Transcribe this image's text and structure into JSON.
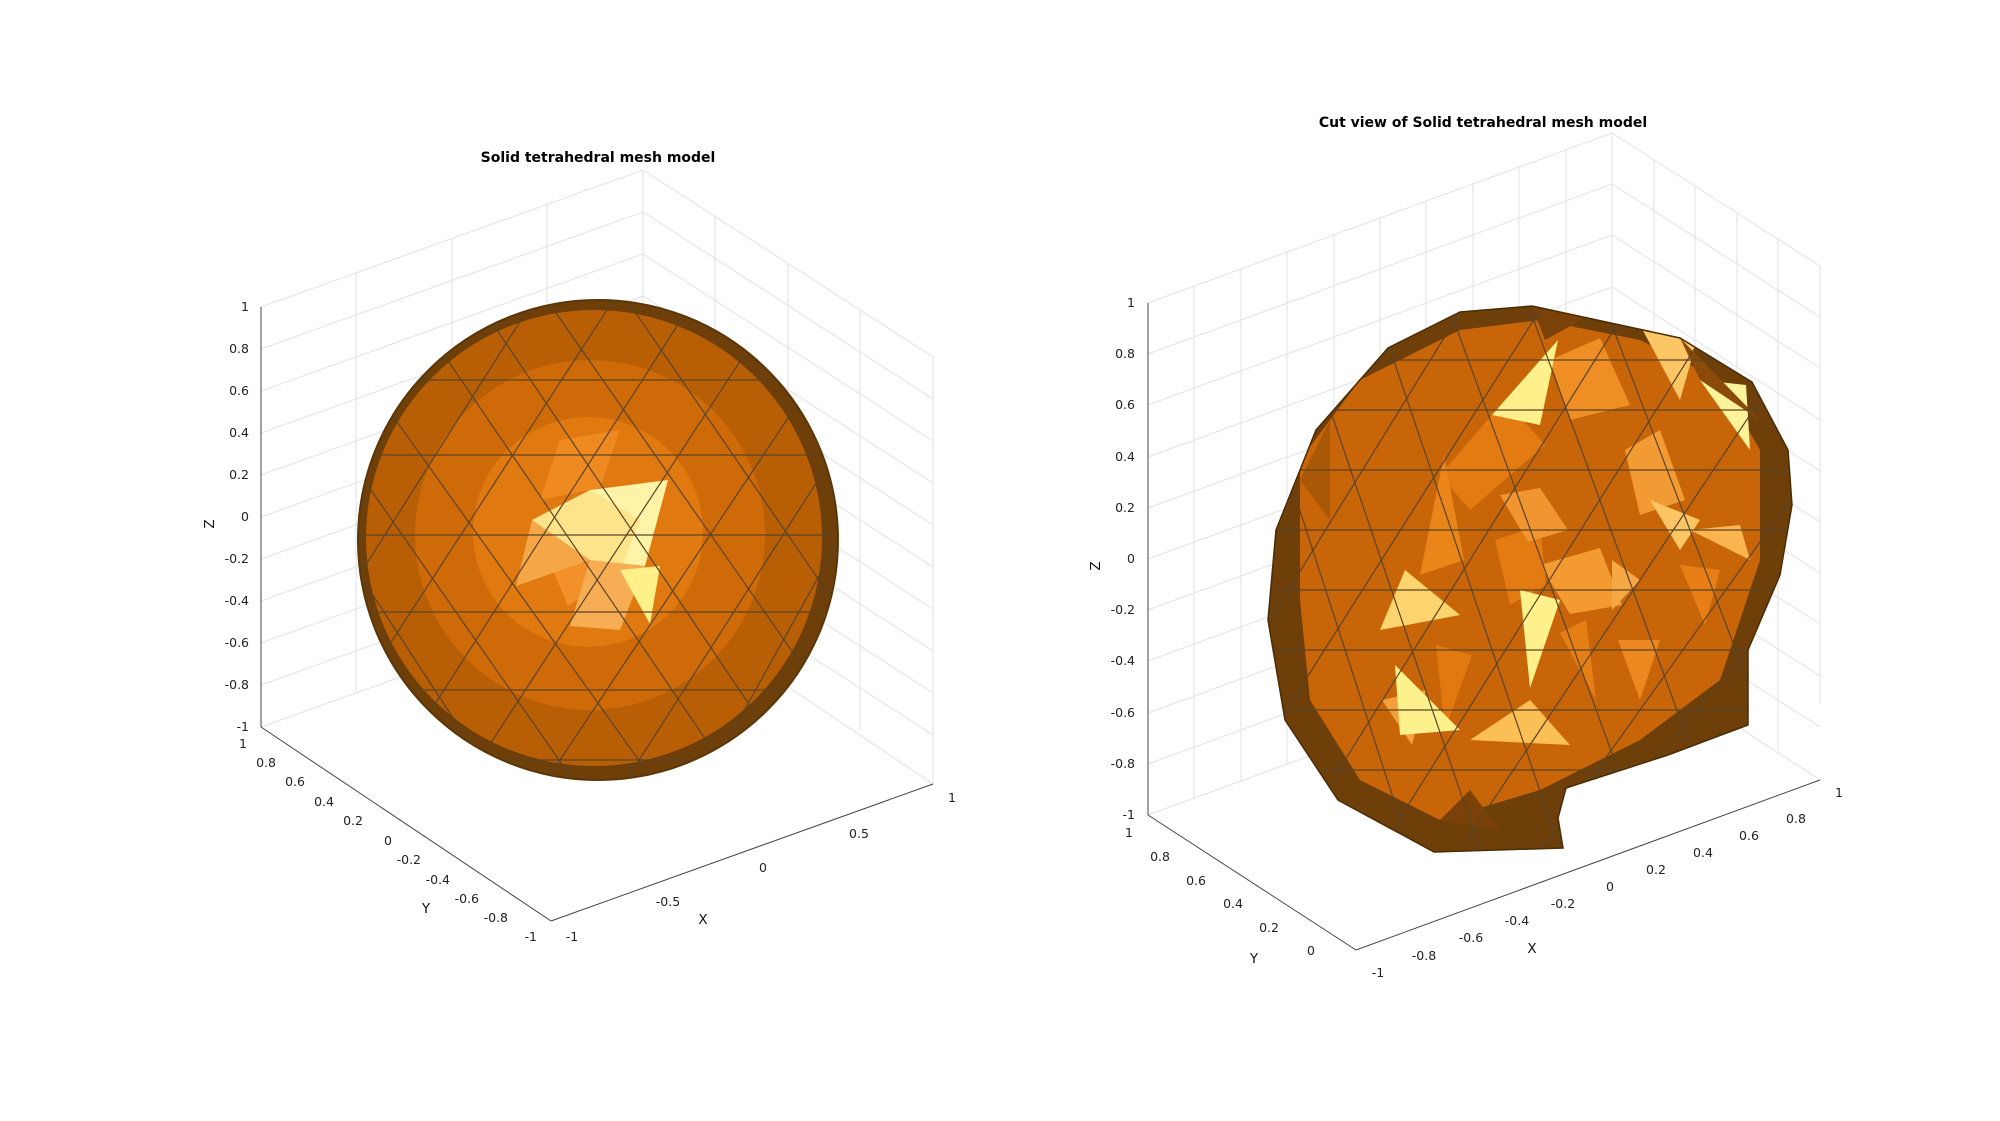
{
  "figure": {
    "panels": [
      {
        "id": "left",
        "title": "Solid tetrahedral mesh model",
        "xlabel": "X",
        "ylabel": "Y",
        "zlabel": "Z",
        "xticks": [
          "-1",
          "-0.5",
          "0",
          "0.5",
          "1"
        ],
        "yticks": [
          "1",
          "0.8",
          "0.6",
          "0.4",
          "0.2",
          "0",
          "-0.2",
          "-0.4",
          "-0.6",
          "-0.8",
          "-1"
        ],
        "zticks": [
          "1",
          "0.8",
          "0.6",
          "0.4",
          "0.2",
          "0",
          "-0.2",
          "-0.4",
          "-0.6",
          "-0.8",
          "-1"
        ],
        "xlim": [
          -1,
          1
        ],
        "ylim": [
          -1,
          1
        ],
        "zlim": [
          -1,
          1
        ]
      },
      {
        "id": "right",
        "title": "Cut view of Solid tetrahedral mesh model",
        "xlabel": "X",
        "ylabel": "Y",
        "zlabel": "Z",
        "xticks": [
          "-1",
          "-0.8",
          "-0.6",
          "-0.4",
          "-0.2",
          "0",
          "0.2",
          "0.4",
          "0.6",
          "0.8",
          "1"
        ],
        "yticks": [
          "1",
          "0.8",
          "0.6",
          "0.4",
          "0.2",
          "0"
        ],
        "zticks": [
          "1",
          "0.8",
          "0.6",
          "0.4",
          "0.2",
          "0",
          "-0.2",
          "-0.4",
          "-0.6",
          "-0.8",
          "-1"
        ],
        "xlim": [
          -1,
          1
        ],
        "ylim": [
          0,
          1
        ],
        "zlim": [
          -1,
          1
        ]
      }
    ],
    "colors": {
      "mesh_face": "#d9740c",
      "mesh_highlight": "#fff59a",
      "mesh_shadow": "#6e3f08",
      "edge": "#5a4426",
      "grid": "#e2e2e2",
      "axis": "#444444"
    }
  }
}
